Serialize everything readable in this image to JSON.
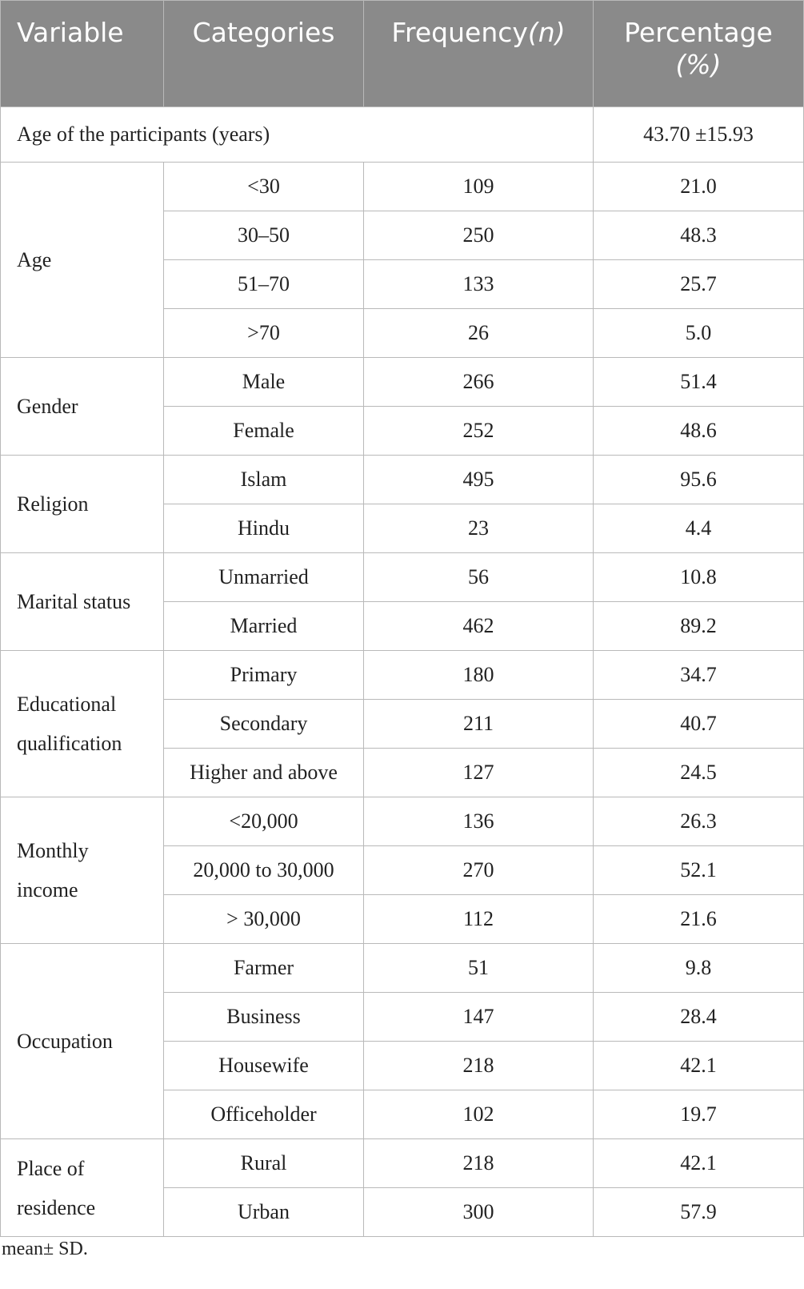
{
  "header": {
    "variable": "Variable",
    "categories": "Categories",
    "frequency_text": "Frequency",
    "frequency_symbol": "(n)",
    "percentage_line1": "Percentage",
    "percentage_line2": "(%)"
  },
  "summary": {
    "label": "Age of the participants (years)",
    "value": "43.70 ±15.93"
  },
  "groups": [
    {
      "variable": [
        "Age"
      ],
      "rows": [
        {
          "category": "<30",
          "frequency": "109",
          "percentage": "21.0"
        },
        {
          "category": "30–50",
          "frequency": "250",
          "percentage": "48.3"
        },
        {
          "category": "51–70",
          "frequency": "133",
          "percentage": "25.7"
        },
        {
          "category": ">70",
          "frequency": "26",
          "percentage": "5.0"
        }
      ]
    },
    {
      "variable": [
        "Gender"
      ],
      "rows": [
        {
          "category": "Male",
          "frequency": "266",
          "percentage": "51.4"
        },
        {
          "category": "Female",
          "frequency": "252",
          "percentage": "48.6"
        }
      ]
    },
    {
      "variable": [
        "Religion"
      ],
      "rows": [
        {
          "category": "Islam",
          "frequency": "495",
          "percentage": "95.6"
        },
        {
          "category": "Hindu",
          "frequency": "23",
          "percentage": "4.4"
        }
      ]
    },
    {
      "variable": [
        "Marital status"
      ],
      "rows": [
        {
          "category": "Unmarried",
          "frequency": "56",
          "percentage": "10.8"
        },
        {
          "category": "Married",
          "frequency": "462",
          "percentage": "89.2"
        }
      ]
    },
    {
      "variable": [
        "Educational",
        "qualification"
      ],
      "rows": [
        {
          "category": "Primary",
          "frequency": "180",
          "percentage": "34.7"
        },
        {
          "category": "Secondary",
          "frequency": "211",
          "percentage": "40.7"
        },
        {
          "category": "Higher and above",
          "frequency": "127",
          "percentage": "24.5"
        }
      ]
    },
    {
      "variable": [
        "Monthly",
        "income"
      ],
      "rows": [
        {
          "category": "<20,000",
          "frequency": "136",
          "percentage": "26.3"
        },
        {
          "category": "20,000 to 30,000",
          "frequency": "270",
          "percentage": "52.1"
        },
        {
          "category": "> 30,000",
          "frequency": "112",
          "percentage": "21.6"
        }
      ]
    },
    {
      "variable": [
        "Occupation"
      ],
      "rows": [
        {
          "category": "Farmer",
          "frequency": "51",
          "percentage": "9.8"
        },
        {
          "category": "Business",
          "frequency": "147",
          "percentage": "28.4"
        },
        {
          "category": "Housewife",
          "frequency": "218",
          "percentage": "42.1"
        },
        {
          "category": "Officeholder",
          "frequency": "102",
          "percentage": "19.7"
        }
      ]
    },
    {
      "variable": [
        "Place of",
        "residence"
      ],
      "rows": [
        {
          "category": "Rural",
          "frequency": "218",
          "percentage": "42.1"
        },
        {
          "category": "Urban",
          "frequency": "300",
          "percentage": "57.9"
        }
      ]
    }
  ],
  "footnote": "mean± SD."
}
